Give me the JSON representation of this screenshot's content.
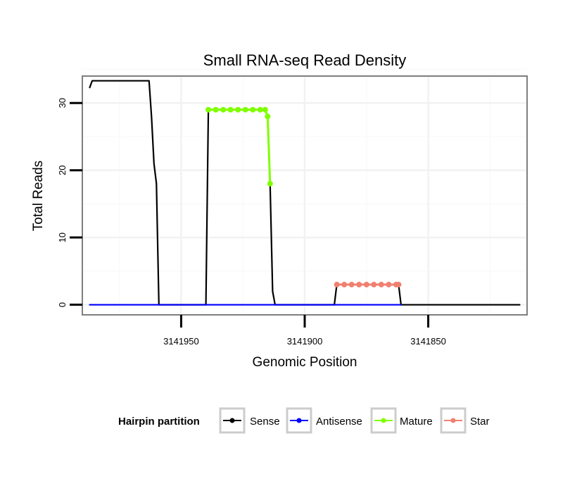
{
  "chart_data": {
    "type": "line",
    "title": "Small RNA-seq Read Density",
    "xlabel": "Genomic Position",
    "ylabel": "Total Reads",
    "x_reversed": true,
    "xlim": [
      3141990,
      3141810
    ],
    "ylim": [
      -1.5,
      34
    ],
    "x_ticks": [
      3141950,
      3141900,
      3141850
    ],
    "x_tick_labels": [
      "3141950",
      "3141900",
      "3141850"
    ],
    "y_ticks": [
      0,
      10,
      20,
      30
    ],
    "y_tick_labels": [
      "0",
      "10",
      "20",
      "30"
    ],
    "grid": true,
    "legend_position": "bottom",
    "legend": {
      "title": "Hairpin partition",
      "entries": [
        "Sense",
        "Antisense",
        "Mature",
        "Star"
      ]
    },
    "series": [
      {
        "name": "Sense",
        "color": "#000000",
        "markers": false,
        "points": [
          [
            3141987,
            32.3
          ],
          [
            3141986,
            33.3
          ],
          [
            3141963,
            33.3
          ],
          [
            3141962,
            28
          ],
          [
            3141961,
            21
          ],
          [
            3141960,
            18
          ],
          [
            3141959,
            0
          ],
          [
            3141940,
            0
          ],
          [
            3141939,
            29
          ],
          [
            3141916,
            29
          ],
          [
            3141915,
            28
          ],
          [
            3141914,
            18
          ],
          [
            3141913,
            2
          ],
          [
            3141912,
            0
          ],
          [
            3141888,
            0
          ],
          [
            3141887,
            3
          ],
          [
            3141862,
            3
          ],
          [
            3141861,
            0
          ],
          [
            3141813,
            0
          ]
        ]
      },
      {
        "name": "Antisense",
        "color": "#0000ff",
        "markers": false,
        "points": [
          [
            3141987,
            0
          ],
          [
            3141861,
            0
          ]
        ]
      },
      {
        "name": "Mature",
        "color": "#7fff00",
        "markers": true,
        "points": [
          [
            3141939,
            29
          ],
          [
            3141936,
            29
          ],
          [
            3141933,
            29
          ],
          [
            3141930,
            29
          ],
          [
            3141927,
            29
          ],
          [
            3141924,
            29
          ],
          [
            3141921,
            29
          ],
          [
            3141918,
            29
          ],
          [
            3141916,
            29
          ],
          [
            3141915,
            28
          ],
          [
            3141914,
            18
          ]
        ]
      },
      {
        "name": "Star",
        "color": "#f08070",
        "markers": true,
        "points": [
          [
            3141887,
            3
          ],
          [
            3141884,
            3
          ],
          [
            3141881,
            3
          ],
          [
            3141878,
            3
          ],
          [
            3141875,
            3
          ],
          [
            3141872,
            3
          ],
          [
            3141869,
            3
          ],
          [
            3141866,
            3
          ],
          [
            3141863,
            3
          ],
          [
            3141862,
            3
          ]
        ]
      }
    ]
  }
}
